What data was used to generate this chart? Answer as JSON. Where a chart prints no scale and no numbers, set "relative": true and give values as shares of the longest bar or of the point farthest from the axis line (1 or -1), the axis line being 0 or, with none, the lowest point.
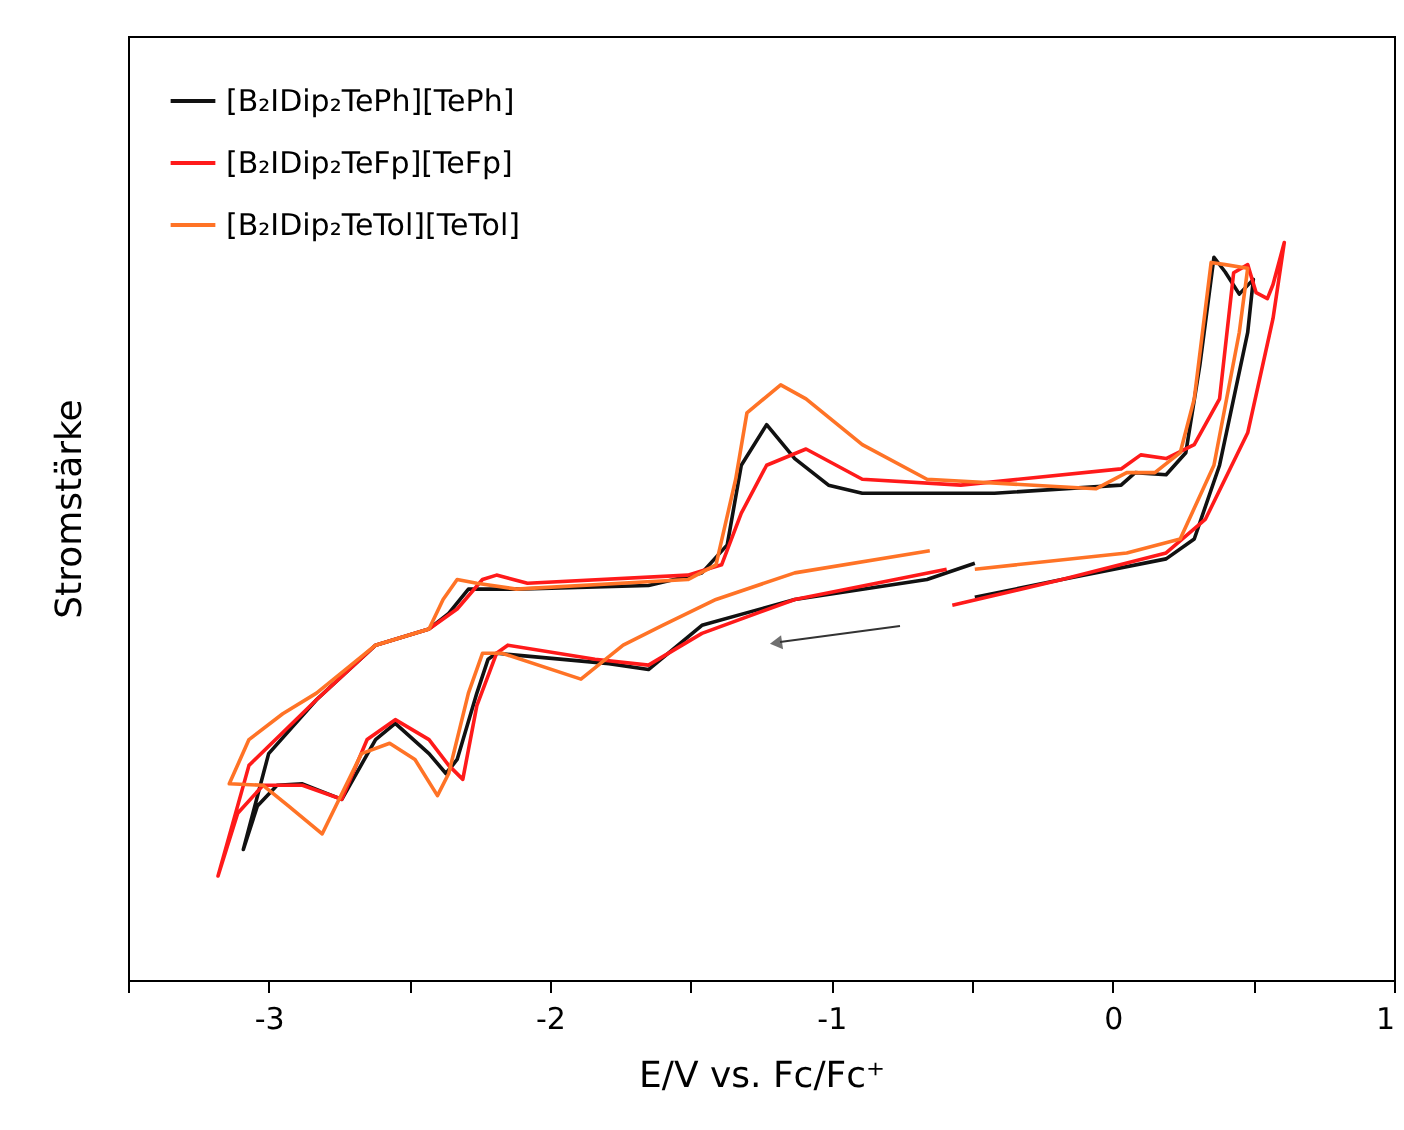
{
  "chart_data": {
    "type": "line",
    "xlabel": "E/V vs. Fc/Fc⁺",
    "ylabel": "Stromstärke",
    "relative": true,
    "xlim": [
      -3.5,
      1
    ],
    "xticks": [
      {
        "value": -3.5,
        "label": null
      },
      -3,
      {
        "value": -2.5,
        "label": null
      },
      -2,
      {
        "value": -1.5,
        "label": null
      },
      -1,
      {
        "value": -0.5,
        "label": null
      },
      0,
      {
        "value": 0.5,
        "label": null
      },
      1
    ],
    "legend": "top left",
    "grid": false,
    "line_style": "solid",
    "series": [
      {
        "name": "[B₂IDip₂TePh][TePh]",
        "color": "#111111",
        "x": [
          -0.49,
          -0.66,
          -1.13,
          -1.46,
          -1.65,
          -1.79,
          -2.19,
          -2.22,
          -2.26,
          -2.33,
          -2.37,
          -2.43,
          -2.55,
          -2.62,
          -2.74,
          -2.88,
          -2.97,
          -3.04,
          -3.09,
          -3.0,
          -2.83,
          -2.62,
          -2.43,
          -2.36,
          -2.29,
          -2.12,
          -1.65,
          -1.46,
          -1.37,
          -1.32,
          -1.23,
          -1.13,
          -1.01,
          -0.89,
          -0.42,
          0.03,
          0.08,
          0.19,
          0.26,
          0.31,
          0.36,
          0.4,
          0.45,
          0.5,
          0.48,
          0.38,
          0.29,
          0.19,
          -0.18,
          -0.49
        ],
        "values": [
          0.565,
          0.543,
          0.516,
          0.481,
          0.421,
          0.429,
          0.443,
          0.435,
          0.389,
          0.299,
          0.28,
          0.307,
          0.348,
          0.326,
          0.245,
          0.266,
          0.264,
          0.236,
          0.177,
          0.307,
          0.38,
          0.454,
          0.476,
          0.497,
          0.53,
          0.53,
          0.535,
          0.552,
          0.59,
          0.698,
          0.753,
          0.707,
          0.671,
          0.66,
          0.66,
          0.671,
          0.688,
          0.685,
          0.715,
          0.834,
          0.98,
          0.96,
          0.93,
          0.95,
          0.878,
          0.698,
          0.598,
          0.571,
          0.543,
          0.519
        ]
      },
      {
        "name": "[B₂IDip₂TeFp][TeFp]",
        "color": "#ff1a1a",
        "x": [
          -0.59,
          -1.13,
          -1.46,
          -1.65,
          -1.84,
          -2.15,
          -2.19,
          -2.26,
          -2.31,
          -2.36,
          -2.43,
          -2.55,
          -2.65,
          -2.74,
          -2.88,
          -3.02,
          -3.11,
          -3.18,
          -3.07,
          -2.83,
          -2.62,
          -2.43,
          -2.33,
          -2.24,
          -2.19,
          -2.08,
          -1.51,
          -1.39,
          -1.32,
          -1.23,
          -1.09,
          -0.89,
          -0.54,
          0.03,
          0.1,
          0.19,
          0.29,
          0.38,
          0.43,
          0.48,
          0.51,
          0.55,
          0.57,
          0.61,
          0.57,
          0.48,
          0.33,
          0.19,
          -0.18,
          -0.57
        ],
        "values": [
          0.557,
          0.516,
          0.47,
          0.427,
          0.435,
          0.454,
          0.443,
          0.372,
          0.272,
          0.291,
          0.326,
          0.353,
          0.326,
          0.245,
          0.264,
          0.264,
          0.226,
          0.141,
          0.291,
          0.38,
          0.454,
          0.476,
          0.503,
          0.543,
          0.549,
          0.538,
          0.549,
          0.563,
          0.633,
          0.698,
          0.72,
          0.679,
          0.671,
          0.693,
          0.712,
          0.707,
          0.726,
          0.788,
          0.959,
          0.97,
          0.932,
          0.924,
          0.943,
          1.0,
          0.897,
          0.742,
          0.625,
          0.579,
          0.543,
          0.508
        ]
      },
      {
        "name": "[B₂IDip₂TeTol][TeTol]",
        "color": "#ff7326",
        "x": [
          -0.65,
          -1.13,
          -1.41,
          -1.6,
          -1.74,
          -1.89,
          -2.17,
          -2.24,
          -2.29,
          -2.36,
          -2.4,
          -2.48,
          -2.57,
          -2.67,
          -2.81,
          -2.93,
          -3.02,
          -3.14,
          -3.07,
          -2.95,
          -2.83,
          -2.62,
          -2.43,
          -2.38,
          -2.33,
          -2.26,
          -2.12,
          -1.51,
          -1.41,
          -1.34,
          -1.3,
          -1.18,
          -1.09,
          -0.89,
          -0.66,
          -0.06,
          0.05,
          0.15,
          0.24,
          0.29,
          0.35,
          0.4,
          0.48,
          0.45,
          0.36,
          0.24,
          0.05,
          -0.49
        ],
        "values": [
          0.582,
          0.552,
          0.516,
          0.481,
          0.454,
          0.408,
          0.443,
          0.443,
          0.389,
          0.28,
          0.25,
          0.299,
          0.321,
          0.307,
          0.198,
          0.236,
          0.264,
          0.266,
          0.326,
          0.361,
          0.389,
          0.454,
          0.476,
          0.516,
          0.543,
          0.538,
          0.53,
          0.543,
          0.563,
          0.679,
          0.769,
          0.807,
          0.788,
          0.726,
          0.679,
          0.666,
          0.688,
          0.688,
          0.715,
          0.788,
          0.973,
          0.97,
          0.965,
          0.878,
          0.698,
          0.598,
          0.579,
          0.557
        ]
      }
    ]
  }
}
